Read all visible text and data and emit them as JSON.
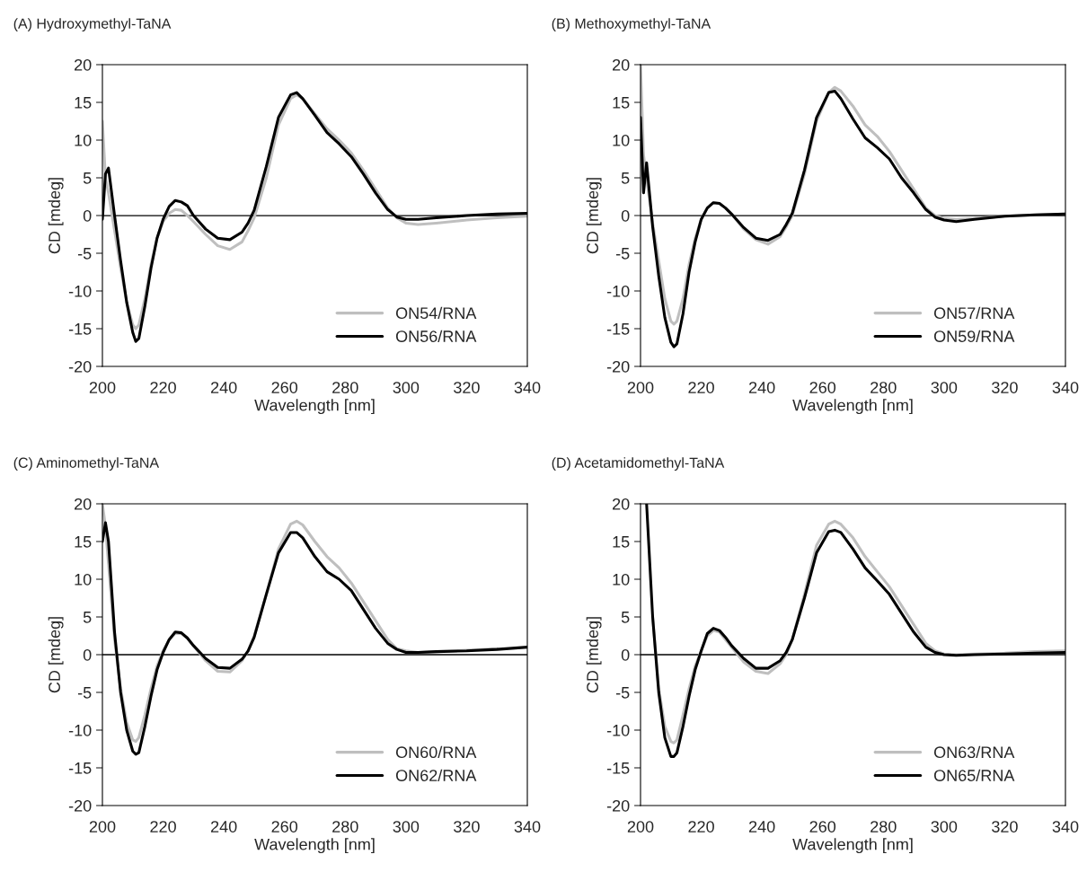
{
  "chart_data": [
    {
      "type": "line",
      "title": "(A) Hydroxymethyl-TaNA",
      "xlabel": "Wavelength [nm]",
      "ylabel": "CD [mdeg]",
      "xlim": [
        200,
        340
      ],
      "xticks": [
        200,
        220,
        240,
        260,
        280,
        300,
        320,
        340
      ],
      "ylim": [
        -20,
        20
      ],
      "yticks": [
        -20,
        -15,
        -10,
        -5,
        0,
        5,
        10,
        15,
        20
      ],
      "legend": "bottom right",
      "grid": false,
      "ref_lines": [
        {
          "axis": "y",
          "value": 0,
          "color": "#000000"
        }
      ],
      "series": [
        {
          "name": "ON54/RNA",
          "color": "#bfbfbf",
          "x": [
            200,
            201,
            202,
            204,
            206,
            208,
            210,
            211,
            212,
            214,
            216,
            218,
            220,
            222,
            224,
            226,
            228,
            230,
            234,
            238,
            242,
            246,
            248,
            250,
            254,
            258,
            262,
            264,
            266,
            270,
            274,
            278,
            282,
            286,
            290,
            294,
            297,
            300,
            304,
            310,
            320,
            330,
            340
          ],
          "values": [
            12.5,
            5,
            3,
            -2,
            -7,
            -11.5,
            -14.5,
            -15,
            -14.5,
            -11,
            -6.5,
            -3,
            -0.8,
            0.3,
            0.8,
            0.7,
            0,
            -0.8,
            -2.5,
            -4,
            -4.5,
            -3.5,
            -2,
            -0.3,
            5,
            12,
            15.5,
            16,
            15.5,
            13.5,
            11.5,
            10,
            8.3,
            6,
            3.5,
            1,
            -0.3,
            -1,
            -1.2,
            -1,
            -0.6,
            -0.3,
            -0.1
          ]
        },
        {
          "name": "ON56/RNA",
          "color": "#000000",
          "x": [
            200,
            201,
            202,
            204,
            206,
            208,
            210,
            211,
            212,
            214,
            216,
            218,
            220,
            222,
            224,
            226,
            228,
            230,
            234,
            238,
            242,
            246,
            248,
            250,
            254,
            258,
            262,
            264,
            266,
            270,
            274,
            278,
            282,
            286,
            290,
            294,
            297,
            300,
            304,
            310,
            320,
            330,
            340
          ],
          "values": [
            -0.5,
            5.5,
            6.3,
            0,
            -6,
            -11.5,
            -15.5,
            -16.7,
            -16.3,
            -12,
            -7,
            -3,
            -0.5,
            1.2,
            2,
            1.8,
            1.3,
            0,
            -1.8,
            -3,
            -3.2,
            -2.2,
            -1,
            0.7,
            6.5,
            13,
            16,
            16.3,
            15.5,
            13.3,
            11,
            9.5,
            7.8,
            5.5,
            3,
            0.8,
            -0.2,
            -0.5,
            -0.5,
            -0.3,
            0,
            0.2,
            0.3
          ]
        }
      ]
    },
    {
      "type": "line",
      "title": "(B) Methoxymethyl-TaNA",
      "xlabel": "Wavelength [nm]",
      "ylabel": "CD [mdeg]",
      "xlim": [
        200,
        340
      ],
      "xticks": [
        200,
        220,
        240,
        260,
        280,
        300,
        320,
        340
      ],
      "ylim": [
        -20,
        20
      ],
      "yticks": [
        -20,
        -15,
        -10,
        -5,
        0,
        5,
        10,
        15,
        20
      ],
      "legend": "bottom right",
      "grid": false,
      "ref_lines": [
        {
          "axis": "y",
          "value": 0,
          "color": "#000000"
        }
      ],
      "series": [
        {
          "name": "ON57/RNA",
          "color": "#bfbfbf",
          "x": [
            200,
            201,
            202,
            204,
            206,
            208,
            210,
            211,
            212,
            214,
            216,
            218,
            220,
            222,
            224,
            226,
            228,
            230,
            234,
            238,
            242,
            246,
            248,
            250,
            254,
            258,
            262,
            264,
            266,
            270,
            274,
            278,
            282,
            286,
            290,
            294,
            297,
            300,
            304,
            310,
            320,
            330,
            340
          ],
          "values": [
            20,
            8,
            5,
            -1,
            -6,
            -11,
            -14,
            -14.4,
            -14,
            -11,
            -6.5,
            -3,
            -0.5,
            1,
            1.7,
            1.6,
            1,
            0.2,
            -1.8,
            -3.2,
            -3.8,
            -2.8,
            -1.5,
            0,
            5.5,
            12.5,
            16.3,
            17,
            16.5,
            14.5,
            12,
            10.5,
            8.5,
            6,
            3.5,
            1,
            0,
            -0.4,
            -0.5,
            -0.4,
            -0.1,
            0.1,
            0.2
          ]
        },
        {
          "name": "ON59/RNA",
          "color": "#000000",
          "x": [
            200,
            201,
            202,
            204,
            206,
            208,
            210,
            211,
            212,
            214,
            216,
            218,
            220,
            222,
            224,
            226,
            228,
            230,
            234,
            238,
            242,
            246,
            248,
            250,
            254,
            258,
            262,
            264,
            266,
            270,
            274,
            278,
            282,
            286,
            290,
            294,
            297,
            300,
            304,
            310,
            320,
            330,
            340
          ],
          "values": [
            13,
            3,
            7,
            -1.5,
            -8,
            -13.5,
            -16.8,
            -17.4,
            -17,
            -13,
            -7.5,
            -3.5,
            -0.5,
            1,
            1.7,
            1.6,
            1,
            0.2,
            -1.6,
            -3,
            -3.3,
            -2.5,
            -1.2,
            0.3,
            6,
            13,
            16.3,
            16.5,
            15.5,
            12.8,
            10.3,
            9,
            7.5,
            5,
            3,
            0.8,
            -0.2,
            -0.6,
            -0.8,
            -0.5,
            -0.1,
            0.1,
            0.2
          ]
        }
      ]
    },
    {
      "type": "line",
      "title": "(C) Aminomethyl-TaNA",
      "xlabel": "Wavelength [nm]",
      "ylabel": "CD [mdeg]",
      "xlim": [
        200,
        340
      ],
      "xticks": [
        200,
        220,
        240,
        260,
        280,
        300,
        320,
        340
      ],
      "ylim": [
        -20,
        20
      ],
      "yticks": [
        -20,
        -15,
        -10,
        -5,
        0,
        5,
        10,
        15,
        20
      ],
      "legend": "bottom right",
      "grid": false,
      "ref_lines": [
        {
          "axis": "y",
          "value": 0,
          "color": "#000000"
        }
      ],
      "series": [
        {
          "name": "ON60/RNA",
          "color": "#bfbfbf",
          "x": [
            200,
            201,
            202,
            204,
            206,
            208,
            210,
            211,
            212,
            214,
            216,
            218,
            220,
            222,
            224,
            226,
            228,
            230,
            234,
            238,
            242,
            246,
            248,
            250,
            254,
            258,
            262,
            264,
            266,
            270,
            274,
            278,
            282,
            286,
            290,
            294,
            297,
            300,
            304,
            310,
            320,
            330
          ],
          "values": [
            20,
            17,
            12,
            2,
            -4.5,
            -9,
            -11.3,
            -11.5,
            -11,
            -8,
            -4.5,
            -1.5,
            0.5,
            2,
            2.8,
            2.8,
            2.2,
            1.2,
            -0.8,
            -2.2,
            -2.3,
            -0.8,
            0.5,
            2.5,
            8,
            14,
            17.3,
            17.7,
            17.2,
            15,
            13,
            11.5,
            9.5,
            7,
            4.5,
            2,
            0.8,
            0.5,
            0.3,
            0.4,
            0.6,
            0.8
          ]
        },
        {
          "name": "ON62/RNA",
          "color": "#000000",
          "x": [
            200,
            201,
            202,
            204,
            206,
            208,
            210,
            211,
            212,
            214,
            216,
            218,
            220,
            222,
            224,
            226,
            228,
            230,
            234,
            238,
            242,
            246,
            248,
            250,
            254,
            258,
            262,
            264,
            266,
            270,
            274,
            278,
            282,
            286,
            290,
            294,
            297,
            300,
            304,
            310,
            320,
            330,
            340
          ],
          "values": [
            15,
            17.5,
            15,
            3,
            -5,
            -10,
            -12.8,
            -13.2,
            -13,
            -9.5,
            -5.5,
            -2,
            0.3,
            2,
            3,
            2.9,
            2.2,
            1.2,
            -0.5,
            -1.7,
            -1.8,
            -0.6,
            0.5,
            2.3,
            8,
            13.5,
            16.2,
            16.2,
            15.5,
            13,
            11,
            10,
            8.5,
            6,
            3.5,
            1.5,
            0.7,
            0.3,
            0.3,
            0.4,
            0.5,
            0.7,
            1
          ]
        }
      ]
    },
    {
      "type": "line",
      "title": "(D) Acetamidomethyl-TaNA",
      "xlabel": "Wavelength [nm]",
      "ylabel": "CD [mdeg]",
      "xlim": [
        200,
        340
      ],
      "xticks": [
        200,
        220,
        240,
        260,
        280,
        300,
        320,
        340
      ],
      "ylim": [
        -20,
        20
      ],
      "yticks": [
        -20,
        -15,
        -10,
        -5,
        0,
        5,
        10,
        15,
        20
      ],
      "legend": "bottom right",
      "grid": false,
      "ref_lines": [
        {
          "axis": "y",
          "value": 0,
          "color": "#000000"
        }
      ],
      "series": [
        {
          "name": "ON63/RNA",
          "color": "#bfbfbf",
          "x": [
            204,
            206,
            208,
            210,
            211,
            212,
            214,
            216,
            218,
            220,
            222,
            224,
            226,
            228,
            230,
            234,
            238,
            242,
            246,
            248,
            250,
            254,
            258,
            262,
            264,
            266,
            270,
            274,
            278,
            282,
            286,
            290,
            294,
            297,
            300,
            304,
            310,
            320,
            330,
            340
          ],
          "values": [
            5,
            -4.5,
            -9.5,
            -11.5,
            -11.7,
            -11.3,
            -8,
            -4.5,
            -1.5,
            0.5,
            2.5,
            3.2,
            3,
            2,
            1,
            -1,
            -2.2,
            -2.5,
            -1.2,
            0,
            2,
            8,
            14.5,
            17.3,
            17.7,
            17.3,
            15.5,
            13,
            11,
            9,
            6.5,
            4,
            1.5,
            0.5,
            0.1,
            0,
            0.1,
            0.2,
            0.4,
            0.5
          ]
        },
        {
          "name": "ON65/RNA",
          "color": "#000000",
          "x": [
            202,
            204,
            206,
            208,
            210,
            211,
            212,
            214,
            216,
            218,
            220,
            222,
            224,
            226,
            228,
            230,
            234,
            238,
            242,
            246,
            248,
            250,
            254,
            258,
            262,
            264,
            266,
            270,
            274,
            278,
            282,
            286,
            290,
            294,
            297,
            300,
            304,
            310,
            320,
            330,
            340
          ],
          "values": [
            20,
            5,
            -5,
            -11,
            -13.5,
            -13.5,
            -13,
            -9.5,
            -5.5,
            -2,
            0.5,
            2.8,
            3.5,
            3.2,
            2.3,
            1.2,
            -0.5,
            -1.8,
            -1.8,
            -0.8,
            0.3,
            2,
            7.5,
            13.5,
            16.3,
            16.5,
            16.2,
            14,
            11.5,
            9.8,
            8,
            5.5,
            3,
            1,
            0.3,
            0,
            -0.1,
            0,
            0.1,
            0.2,
            0.3
          ]
        }
      ]
    }
  ]
}
